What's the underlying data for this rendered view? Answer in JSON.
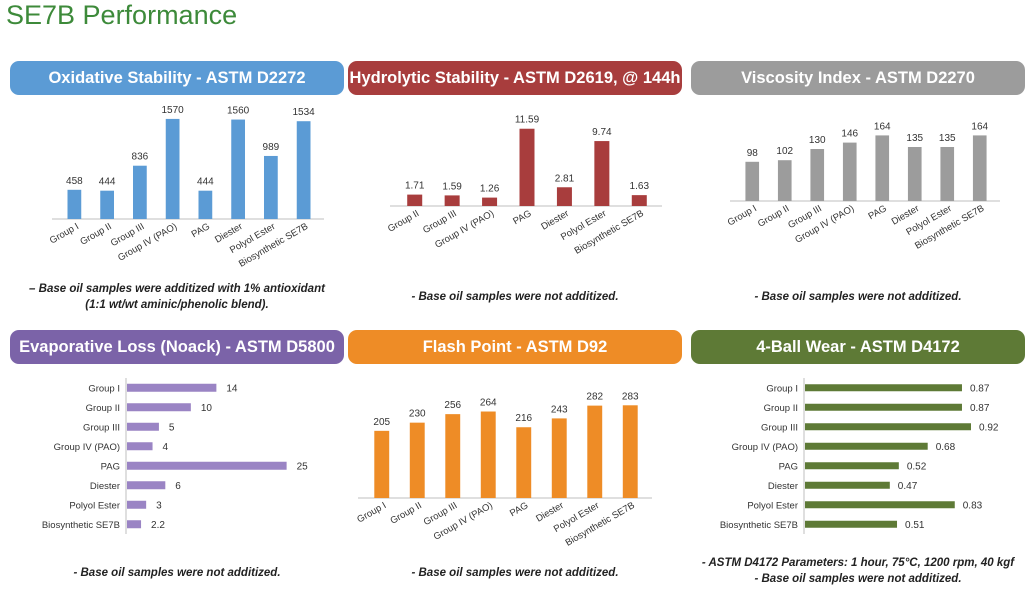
{
  "page": {
    "title": "SE7B Performance"
  },
  "panels": [
    {
      "title": "Oxidative Stability - ASTM D2272",
      "header_color": "#5b9bd5",
      "notes": [
        "– Base oil samples were additized with 1% antioxidant",
        "(1:1 wt/wt aminic/phenolic blend)."
      ]
    },
    {
      "title": "Hydrolytic Stability - ASTM D2619, @ 144h",
      "header_color": "#a83d3d",
      "notes": [
        "- Base oil samples were not additized."
      ]
    },
    {
      "title": "Viscosity Index - ASTM D2270",
      "header_color": "#9c9c9c",
      "notes": [
        "- Base oil samples were not additized."
      ]
    },
    {
      "title": "Evaporative Loss (Noack) - ASTM D5800",
      "header_color": "#7b63a8",
      "notes": [
        "- Base oil samples were not additized."
      ]
    },
    {
      "title": "Flash Point - ASTM D92",
      "header_color": "#ee8c26",
      "notes": [
        "- Base oil samples were not additized."
      ]
    },
    {
      "title": "4-Ball Wear - ASTM D4172",
      "header_color": "#5e7a36",
      "notes": [
        "- ASTM D4172 Parameters: 1 hour, 75°C, 1200 rpm, 40 kgf",
        "- Base oil samples were not additized."
      ]
    }
  ],
  "chart_data": [
    {
      "type": "bar",
      "title": "Oxidative Stability - ASTM D2272",
      "color": "#5b9bd5",
      "categories": [
        "Group I",
        "Group II",
        "Group III",
        "Group IV (PAO)",
        "PAG",
        "Diester",
        "Polyol Ester",
        "Biosynthetic SE7B"
      ],
      "values": [
        458,
        444,
        836,
        1570,
        444,
        1560,
        989,
        1534
      ],
      "ylim": [
        0,
        1600
      ]
    },
    {
      "type": "bar",
      "title": "Hydrolytic Stability - ASTM D2619, @ 144h",
      "color": "#a83d3d",
      "categories": [
        "Group II",
        "Group III",
        "Group IV (PAO)",
        "PAG",
        "Diester",
        "Polyol Ester",
        "Biosynthetic SE7B"
      ],
      "values": [
        1.71,
        1.59,
        1.26,
        11.59,
        2.81,
        9.74,
        1.63
      ],
      "ylim": [
        0,
        12
      ]
    },
    {
      "type": "bar",
      "title": "Viscosity Index - ASTM D2270",
      "color": "#9c9c9c",
      "categories": [
        "Group I",
        "Group II",
        "Group III",
        "Group IV (PAO)",
        "PAG",
        "Diester",
        "Polyol Ester",
        "Biosynthetic SE7B"
      ],
      "values": [
        98,
        102,
        130,
        146,
        164,
        135,
        135,
        164
      ],
      "ylim": [
        0,
        170
      ]
    },
    {
      "type": "bar",
      "orientation": "horizontal",
      "title": "Evaporative Loss (Noack) - ASTM D5800",
      "color": "#9a84c4",
      "categories": [
        "Group I",
        "Group II",
        "Group III",
        "Group IV (PAO)",
        "PAG",
        "Diester",
        "Polyol Ester",
        "Biosynthetic SE7B"
      ],
      "values": [
        14,
        10,
        5,
        4,
        25,
        6,
        3,
        2.2
      ],
      "labels": [
        "14",
        "10",
        "5",
        "4",
        "25",
        "6",
        "3",
        "2.2"
      ],
      "xlim": [
        0,
        26
      ]
    },
    {
      "type": "bar",
      "title": "Flash Point - ASTM D92",
      "color": "#ee8c26",
      "categories": [
        "Group I",
        "Group II",
        "Group III",
        "Group IV (PAO)",
        "PAG",
        "Diester",
        "Polyol Ester",
        "Biosynthetic SE7B"
      ],
      "values": [
        205,
        230,
        256,
        264,
        216,
        243,
        282,
        283
      ],
      "ylim": [
        0,
        290
      ]
    },
    {
      "type": "bar",
      "orientation": "horizontal",
      "title": "4-Ball Wear - ASTM D4172",
      "color": "#5e7a36",
      "categories": [
        "Group I",
        "Group II",
        "Group III",
        "Group IV (PAO)",
        "PAG",
        "Diester",
        "Polyol Ester",
        "Biosynthetic SE7B"
      ],
      "values": [
        0.87,
        0.87,
        0.92,
        0.68,
        0.52,
        0.47,
        0.83,
        0.51
      ],
      "labels": [
        "0.87",
        "0.87",
        "0.92",
        "0.68",
        "0.52",
        "0.47",
        "0.83",
        "0.51"
      ],
      "xlim": [
        0,
        0.92
      ]
    }
  ]
}
